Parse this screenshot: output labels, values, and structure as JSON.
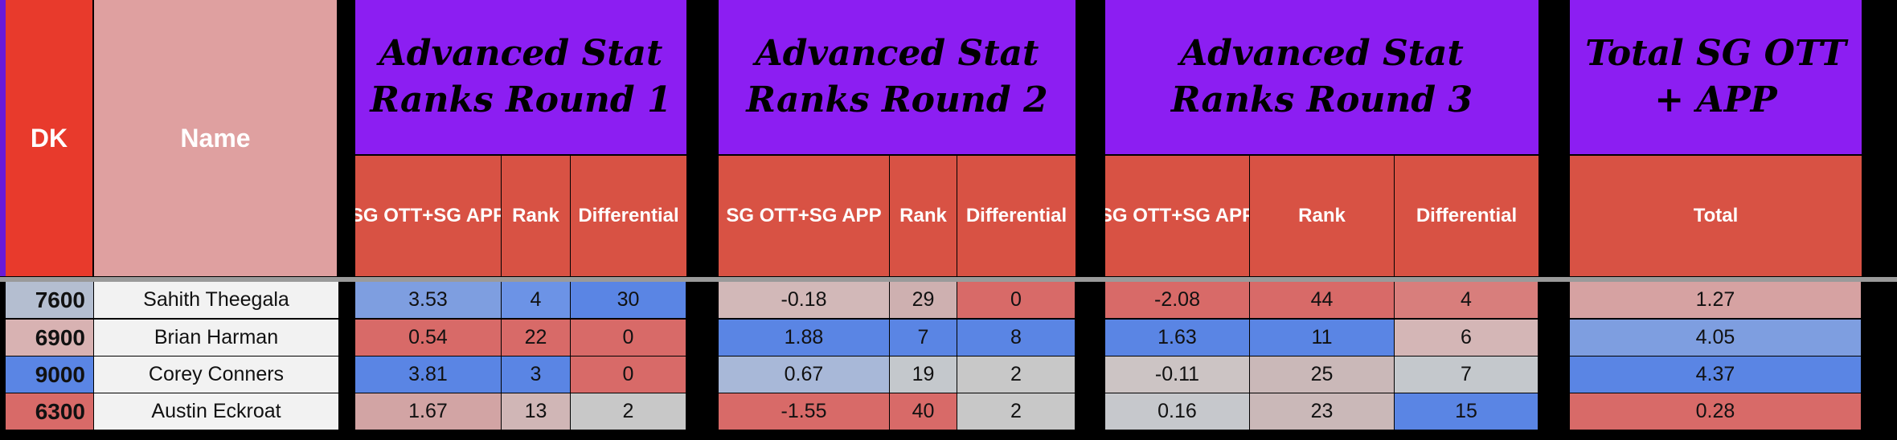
{
  "colors": {
    "purple": "#8c1ef2",
    "subheader": "#d85244",
    "dk_header": "#e83a2c",
    "name_header": "#dfa0a0",
    "blue_strong": "#5a85e4",
    "red_strong": "#d86a68"
  },
  "header": {
    "dk": "DK",
    "name": "Name",
    "groups": [
      {
        "title": "Advanced Stat Ranks Round 1",
        "columns": [
          "SG OTT+SG APP",
          "Rank",
          "Differential"
        ]
      },
      {
        "title": "Advanced Stat Ranks Round 2",
        "columns": [
          "SG OTT+SG APP",
          "Rank",
          "Differential"
        ]
      },
      {
        "title": "Advanced Stat Ranks Round 3",
        "columns": [
          "SG OTT+SG APP",
          "Rank",
          "Differential"
        ]
      },
      {
        "title": "Total SG OTT + APP",
        "columns": [
          "Total"
        ]
      }
    ]
  },
  "rows": [
    {
      "dk": "7600",
      "dk_color": "#b4bed0",
      "name": "Sahith Theegala",
      "cells": [
        {
          "v": "3.53",
          "c": "#7e9ee0"
        },
        {
          "v": "4",
          "c": "#6c93e6"
        },
        {
          "v": "30",
          "c": "#5a85e4"
        },
        {
          "v": "-0.18",
          "c": "#d2b8b8"
        },
        {
          "v": "29",
          "c": "#ceb0b0"
        },
        {
          "v": "0",
          "c": "#d86a68"
        },
        {
          "v": "-2.08",
          "c": "#d86a68"
        },
        {
          "v": "44",
          "c": "#d86a68"
        },
        {
          "v": "4",
          "c": "#d87e7c"
        },
        {
          "v": "1.27",
          "c": "#d6a2a2"
        }
      ]
    },
    {
      "dk": "6900",
      "dk_color": "#d8b2b2",
      "name": "Brian Harman",
      "cells": [
        {
          "v": "0.54",
          "c": "#d86a68"
        },
        {
          "v": "22",
          "c": "#d86a68"
        },
        {
          "v": "0",
          "c": "#d86a68"
        },
        {
          "v": "1.88",
          "c": "#5a85e4"
        },
        {
          "v": "7",
          "c": "#5a85e4"
        },
        {
          "v": "8",
          "c": "#5a85e4"
        },
        {
          "v": "1.63",
          "c": "#5a85e4"
        },
        {
          "v": "11",
          "c": "#5a85e4"
        },
        {
          "v": "6",
          "c": "#d4b6b6"
        },
        {
          "v": "4.05",
          "c": "#7e9ee0"
        }
      ]
    },
    {
      "dk": "9000",
      "dk_color": "#5a85e4",
      "name": "Corey Conners",
      "cells": [
        {
          "v": "3.81",
          "c": "#5a85e4"
        },
        {
          "v": "3",
          "c": "#5a85e4"
        },
        {
          "v": "0",
          "c": "#d86a68"
        },
        {
          "v": "0.67",
          "c": "#a8b8d8"
        },
        {
          "v": "19",
          "c": "#c4c8cc"
        },
        {
          "v": "2",
          "c": "#c8c8c8"
        },
        {
          "v": "-0.11",
          "c": "#ccc4c4"
        },
        {
          "v": "25",
          "c": "#cab8b8"
        },
        {
          "v": "7",
          "c": "#c4c8cc"
        },
        {
          "v": "4.37",
          "c": "#5a85e4"
        }
      ]
    },
    {
      "dk": "6300",
      "dk_color": "#d86a68",
      "name": "Austin Eckroat",
      "cells": [
        {
          "v": "1.67",
          "c": "#d2a4a4"
        },
        {
          "v": "13",
          "c": "#d0b6b6"
        },
        {
          "v": "2",
          "c": "#c8c8c8"
        },
        {
          "v": "-1.55",
          "c": "#d86a68"
        },
        {
          "v": "40",
          "c": "#d86a68"
        },
        {
          "v": "2",
          "c": "#c8c8c8"
        },
        {
          "v": "0.16",
          "c": "#c6c8cc"
        },
        {
          "v": "23",
          "c": "#cab8b8"
        },
        {
          "v": "15",
          "c": "#5a85e4"
        },
        {
          "v": "0.28",
          "c": "#d86a68"
        }
      ]
    }
  ]
}
